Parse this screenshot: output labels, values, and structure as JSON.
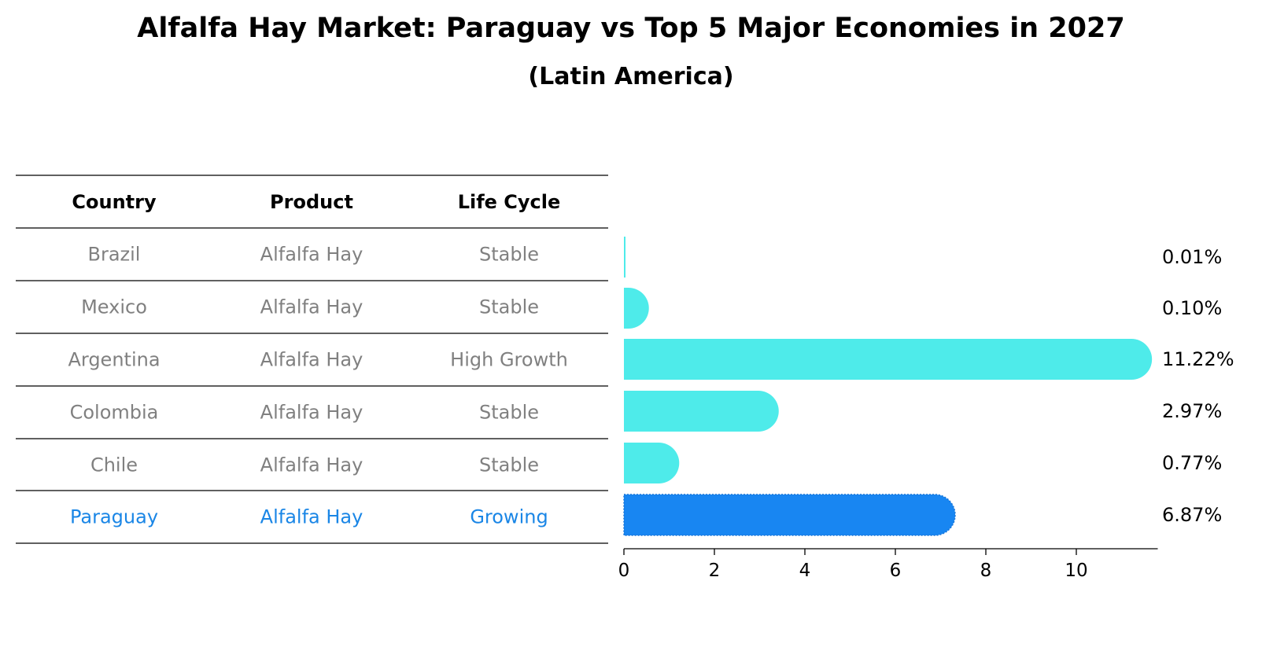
{
  "title": "Alfalfa Hay Market: Paraguay vs Top 5 Major Economies in 2027",
  "subtitle": "(Latin America)",
  "table": {
    "headers": [
      "Country",
      "Product",
      "Life Cycle"
    ],
    "rows": [
      {
        "country": "Brazil",
        "product": "Alfalfa Hay",
        "life_cycle": "Stable",
        "highlight": false
      },
      {
        "country": "Mexico",
        "product": "Alfalfa Hay",
        "life_cycle": "Stable",
        "highlight": false
      },
      {
        "country": "Argentina",
        "product": "Alfalfa Hay",
        "life_cycle": "High Growth",
        "highlight": false
      },
      {
        "country": "Colombia",
        "product": "Alfalfa Hay",
        "life_cycle": "Stable",
        "highlight": false
      },
      {
        "country": "Chile",
        "product": "Alfalfa Hay",
        "life_cycle": "Stable",
        "highlight": false
      },
      {
        "country": "Paraguay",
        "product": "Alfalfa Hay",
        "life_cycle": "Growing",
        "highlight": true
      }
    ]
  },
  "colors": {
    "normal_text": "#808080",
    "highlight_text": "#1a86e6",
    "bar": "#4eebea",
    "highlight_bar": "#1886f2",
    "rule": "#000000"
  },
  "chart_data": {
    "type": "bar",
    "orientation": "horizontal",
    "categories": [
      "Brazil",
      "Mexico",
      "Argentina",
      "Colombia",
      "Chile",
      "Paraguay"
    ],
    "values": [
      0.01,
      0.1,
      11.22,
      2.97,
      0.77,
      6.87
    ],
    "value_labels": [
      "0.01%",
      "0.10%",
      "11.22%",
      "2.97%",
      "0.77%",
      "6.87%"
    ],
    "xlim": [
      0,
      11.8
    ],
    "xticks": [
      0,
      2,
      4,
      6,
      8,
      10
    ],
    "highlight": "Paraguay"
  }
}
